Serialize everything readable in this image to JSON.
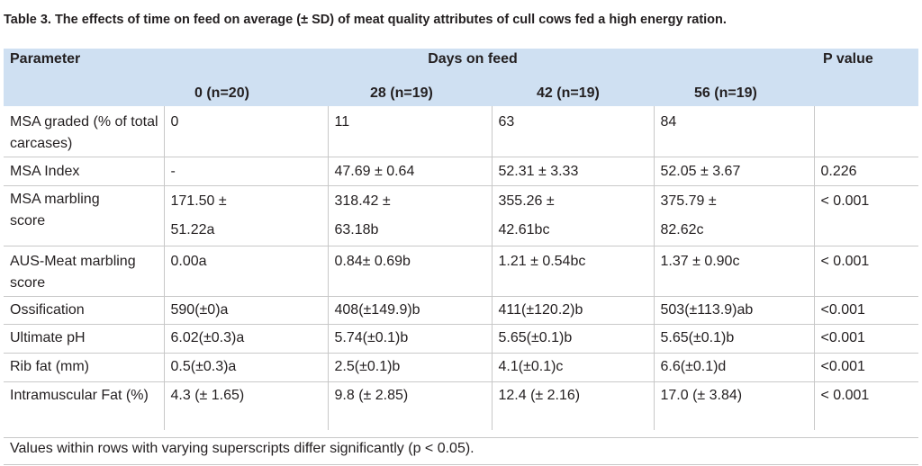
{
  "caption": "Table 3. The effects of time on feed on average (± SD) of meat quality attributes of cull cows fed a high energy ration.",
  "header": {
    "parameter": "Parameter",
    "days_on_feed": "Days on feed",
    "p_value": "P value",
    "col_0": "0 (n=20)",
    "col_28": "28 (n=19)",
    "col_42": "42 (n=19)",
    "col_56": "56 (n=19)"
  },
  "rows": [
    {
      "param": "MSA graded (% of total carcases)",
      "d0": "0",
      "d28": "11",
      "d42": "63",
      "d56": "84",
      "p": ""
    },
    {
      "param": "MSA Index",
      "d0": "-",
      "d28": "47.69 ± 0.64",
      "d42": "52.31 ± 3.33",
      "d56": "52.05 ± 3.67",
      "p": "0.226"
    },
    {
      "param_a": "MSA marbling",
      "param_b": "score",
      "d0_a": "171.50 ±",
      "d0_b": "51.22a",
      "d28_a": "318.42 ±",
      "d28_b": "63.18b",
      "d42_a": "355.26 ±",
      "d42_b": "42.61bc",
      "d56_a": "375.79 ±",
      "d56_b": "82.62c",
      "p": "< 0.001"
    },
    {
      "param": "AUS-Meat marbling score",
      "d0": "0.00a",
      "d28": "0.84± 0.69b",
      "d42": "1.21 ± 0.54bc",
      "d56": "1.37 ± 0.90c",
      "p": "< 0.001"
    },
    {
      "param": "Ossification",
      "d0": "590(±0)a",
      "d28": "408(±149.9)b",
      "d42": "411(±120.2)b",
      "d56": "503(±113.9)ab",
      "p": "<0.001"
    },
    {
      "param": "Ultimate pH",
      "d0": "6.02(±0.3)a",
      "d28": "5.74(±0.1)b",
      "d42": "5.65(±0.1)b",
      "d56": "5.65(±0.1)b",
      "p": "<0.001"
    },
    {
      "param": "Rib fat (mm)",
      "d0": "0.5(±0.3)a",
      "d28": "2.5(±0.1)b",
      "d42": "4.1(±0.1)c",
      "d56": "6.6(±0.1)d",
      "p": "<0.001"
    },
    {
      "param": "Intramuscular Fat (%)",
      "d0": "4.3 (± 1.65)",
      "d28": "9.8 (± 2.85)",
      "d42": "12.4 (± 2.16)",
      "d56": "17.0 (± 3.84)",
      "p": "< 0.001"
    }
  ],
  "footnote": "Values within rows with varying superscripts differ significantly (p < 0.05)."
}
